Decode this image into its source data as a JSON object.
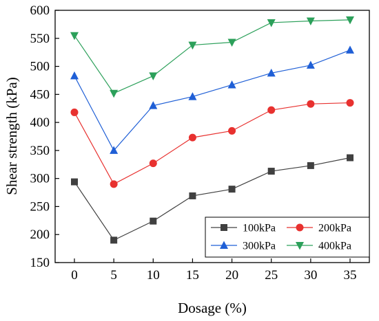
{
  "chart_data": {
    "type": "line",
    "title": "",
    "xlabel": "Dosage (%)",
    "ylabel": "Shear strength (kPa)",
    "x": [
      0,
      5,
      10,
      15,
      20,
      25,
      30,
      35
    ],
    "xticks": [
      "0",
      "5",
      "10",
      "15",
      "20",
      "25",
      "30",
      "35"
    ],
    "yticks": [
      "150",
      "200",
      "250",
      "300",
      "350",
      "400",
      "450",
      "500",
      "550",
      "600"
    ],
    "ylim": [
      150,
      600
    ],
    "grid": false,
    "legend_position": "bottom-right",
    "series": [
      {
        "name": "100kPa",
        "marker": "square",
        "color": "#404040",
        "values": [
          294,
          190,
          224,
          269,
          281,
          313,
          323,
          337
        ]
      },
      {
        "name": "200kPa",
        "marker": "circle",
        "color": "#e8312f",
        "values": [
          418,
          290,
          327,
          373,
          385,
          422,
          433,
          435
        ]
      },
      {
        "name": "300kPa",
        "marker": "triangle-up",
        "color": "#1f5fd6",
        "values": [
          483,
          350,
          430,
          446,
          467,
          488,
          502,
          529
        ]
      },
      {
        "name": "400kPa",
        "marker": "triangle-down",
        "color": "#2ca05a",
        "values": [
          555,
          452,
          483,
          538,
          543,
          578,
          581,
          583
        ]
      }
    ]
  }
}
